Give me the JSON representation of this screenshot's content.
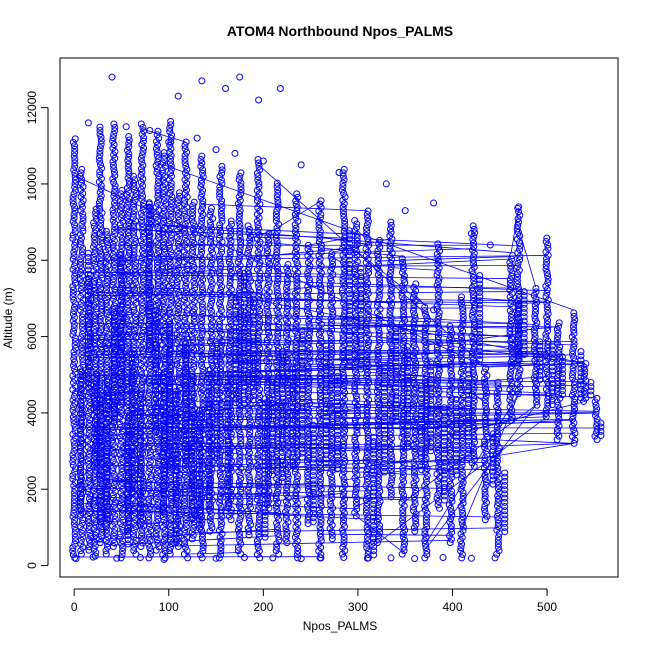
{
  "chart_data": {
    "type": "scatter",
    "title": "ATOM4 Northbound Npos_PALMS",
    "xlabel": "Npos_PALMS",
    "ylabel": "Altitude (m)",
    "xlim": [
      -15,
      575
    ],
    "ylim": [
      -300,
      13300
    ],
    "xticks": [
      0,
      100,
      200,
      300,
      400,
      500
    ],
    "yticks": [
      0,
      2000,
      4000,
      6000,
      8000,
      10000,
      12000
    ],
    "grid": false,
    "legend": "none",
    "color": "#0000ff",
    "series": [
      {
        "profiles": [
          {
            "x": 0,
            "y0": 200,
            "y1": 11200
          },
          {
            "x": 8,
            "y0": 300,
            "y1": 10400
          },
          {
            "x": 16,
            "y0": 400,
            "y1": 7600
          },
          {
            "x": 22,
            "y0": 250,
            "y1": 9400
          },
          {
            "x": 28,
            "y0": 600,
            "y1": 11500
          },
          {
            "x": 35,
            "y0": 300,
            "y1": 8800
          },
          {
            "x": 42,
            "y0": 500,
            "y1": 11600
          },
          {
            "x": 50,
            "y0": 200,
            "y1": 9900
          },
          {
            "x": 57,
            "y0": 800,
            "y1": 11300
          },
          {
            "x": 64,
            "y0": 300,
            "y1": 10200
          },
          {
            "x": 72,
            "y0": 500,
            "y1": 11600
          },
          {
            "x": 80,
            "y0": 200,
            "y1": 9500
          },
          {
            "x": 88,
            "y0": 400,
            "y1": 11400
          },
          {
            "x": 95,
            "y0": 200,
            "y1": 10900
          },
          {
            "x": 102,
            "y0": 300,
            "y1": 11700
          },
          {
            "x": 110,
            "y0": 500,
            "y1": 9800
          },
          {
            "x": 118,
            "y0": 300,
            "y1": 11100
          },
          {
            "x": 126,
            "y0": 700,
            "y1": 9600
          },
          {
            "x": 135,
            "y0": 200,
            "y1": 10800
          },
          {
            "x": 145,
            "y0": 900,
            "y1": 9400
          },
          {
            "x": 155,
            "y0": 200,
            "y1": 10500
          },
          {
            "x": 165,
            "y0": 1200,
            "y1": 9100
          },
          {
            "x": 175,
            "y0": 300,
            "y1": 10300
          },
          {
            "x": 185,
            "y0": 800,
            "y1": 8900
          },
          {
            "x": 195,
            "y0": 200,
            "y1": 10700
          },
          {
            "x": 205,
            "y0": 1500,
            "y1": 8700
          },
          {
            "x": 215,
            "y0": 300,
            "y1": 10100
          },
          {
            "x": 225,
            "y0": 600,
            "y1": 7900
          },
          {
            "x": 235,
            "y0": 200,
            "y1": 9800
          },
          {
            "x": 248,
            "y0": 1100,
            "y1": 8400
          },
          {
            "x": 260,
            "y0": 200,
            "y1": 9600
          },
          {
            "x": 272,
            "y0": 700,
            "y1": 8200
          },
          {
            "x": 285,
            "y0": 300,
            "y1": 10400
          },
          {
            "x": 298,
            "y0": 1300,
            "y1": 9100
          },
          {
            "x": 310,
            "y0": 200,
            "y1": 9300
          },
          {
            "x": 322,
            "y0": 600,
            "y1": 8600
          },
          {
            "x": 335,
            "y0": 1800,
            "y1": 9000
          },
          {
            "x": 348,
            "y0": 300,
            "y1": 8100
          },
          {
            "x": 360,
            "y0": 900,
            "y1": 7400
          },
          {
            "x": 372,
            "y0": 200,
            "y1": 6800
          },
          {
            "x": 385,
            "y0": 1500,
            "y1": 8500
          },
          {
            "x": 398,
            "y0": 600,
            "y1": 6300
          },
          {
            "x": 410,
            "y0": 200,
            "y1": 7100
          },
          {
            "x": 422,
            "y0": 2600,
            "y1": 8900
          },
          {
            "x": 435,
            "y0": 1200,
            "y1": 5200
          },
          {
            "x": 448,
            "y0": 300,
            "y1": 4800
          },
          {
            "x": 462,
            "y0": 3800,
            "y1": 8200
          },
          {
            "x": 470,
            "y0": 4500,
            "y1": 9400
          },
          {
            "x": 488,
            "y0": 4200,
            "y1": 7300
          },
          {
            "x": 500,
            "y0": 3900,
            "y1": 8600
          },
          {
            "x": 512,
            "y0": 3300,
            "y1": 6400
          },
          {
            "x": 528,
            "y0": 3200,
            "y1": 6700
          },
          {
            "x": 540,
            "y0": 4300,
            "y1": 5300
          },
          {
            "x": 552,
            "y0": 3300,
            "y1": 4400
          }
        ],
        "bottom_points": [
          [
            2,
            180
          ],
          [
            20,
            220
          ],
          [
            45,
            190
          ],
          [
            70,
            210
          ],
          [
            95,
            160
          ],
          [
            120,
            200
          ],
          [
            150,
            190
          ],
          [
            180,
            210
          ],
          [
            210,
            200
          ],
          [
            240,
            180
          ],
          [
            260,
            200
          ],
          [
            285,
            210
          ],
          [
            310,
            190
          ],
          [
            335,
            200
          ],
          [
            360,
            180
          ],
          [
            390,
            210
          ],
          [
            420,
            190
          ],
          [
            445,
            200
          ]
        ],
        "top_points": [
          [
            40,
            12800
          ],
          [
            110,
            12300
          ],
          [
            135,
            12700
          ],
          [
            160,
            12500
          ],
          [
            175,
            12800
          ],
          [
            195,
            12200
          ],
          [
            218,
            12500
          ],
          [
            15,
            11600
          ],
          [
            55,
            11500
          ],
          [
            80,
            11400
          ],
          [
            100,
            11100
          ],
          [
            130,
            11200
          ],
          [
            150,
            10900
          ],
          [
            170,
            10800
          ],
          [
            200,
            10600
          ],
          [
            240,
            10500
          ],
          [
            280,
            10300
          ],
          [
            330,
            10000
          ],
          [
            350,
            9300
          ],
          [
            380,
            9500
          ],
          [
            470,
            9400
          ],
          [
            420,
            8700
          ],
          [
            440,
            8400
          ],
          [
            380,
            6700
          ]
        ]
      }
    ]
  }
}
